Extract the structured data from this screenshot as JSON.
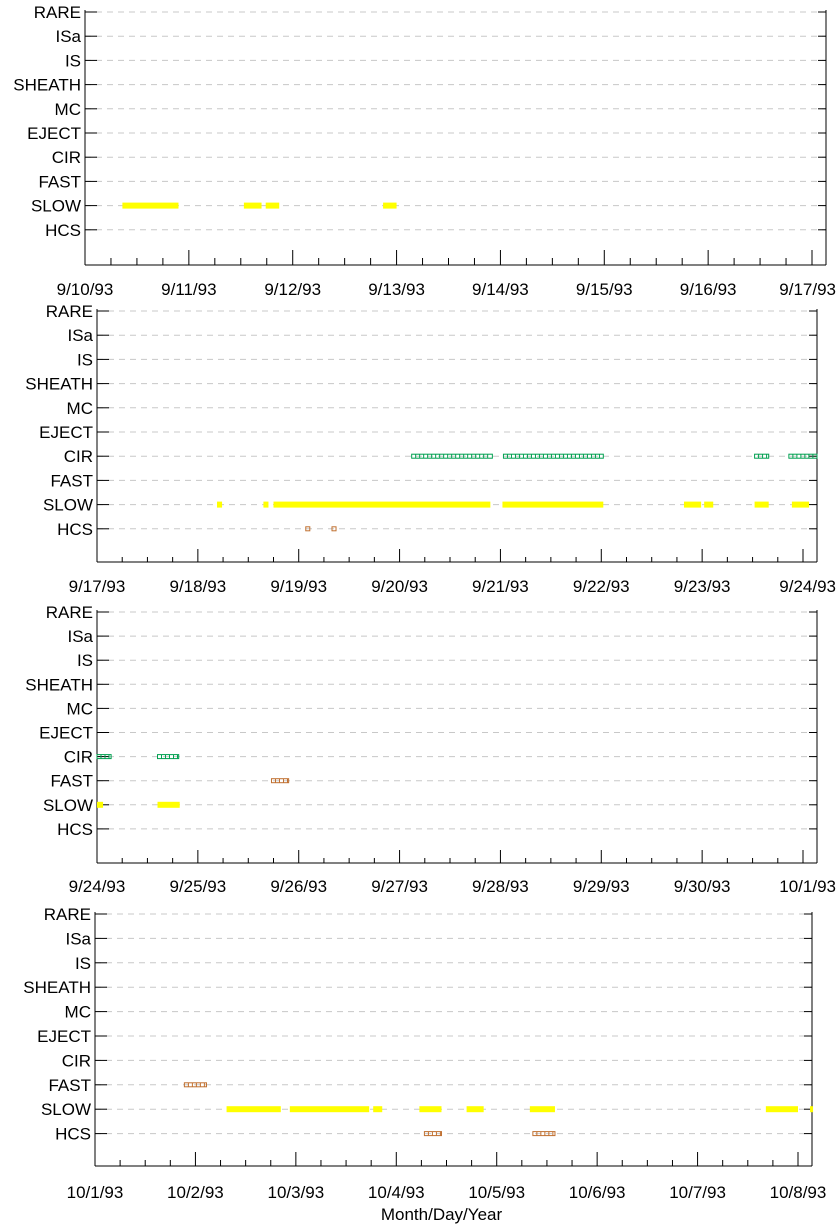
{
  "chart_data": [
    {
      "type": "scatter",
      "title": "",
      "xlabel": "",
      "ylabel": "",
      "categories": [
        "RARE",
        "ISa",
        "IS",
        "SHEATH",
        "MC",
        "EJECT",
        "CIR",
        "FAST",
        "SLOW",
        "HCS"
      ],
      "tick_labels": [
        "9/10/93",
        "9/11/93",
        "9/12/93",
        "9/13/93",
        "9/14/93",
        "9/15/93",
        "9/16/93",
        "9/17/93"
      ],
      "xlim": [
        0,
        7
      ],
      "grid": "horizontal-dashed",
      "series": [
        {
          "category": "SLOW",
          "color": "#ffff00",
          "style": "solid",
          "segments": [
            [
              0.36,
              0.9
            ],
            [
              1.53,
              1.7
            ],
            [
              1.74,
              1.87
            ],
            [
              2.87,
              3.0
            ]
          ]
        }
      ]
    },
    {
      "type": "scatter",
      "title": "",
      "xlabel": "",
      "ylabel": "",
      "categories": [
        "RARE",
        "ISa",
        "IS",
        "SHEATH",
        "MC",
        "EJECT",
        "CIR",
        "FAST",
        "SLOW",
        "HCS"
      ],
      "tick_labels": [
        "9/17/93",
        "9/18/93",
        "9/19/93",
        "9/20/93",
        "9/21/93",
        "9/22/93",
        "9/23/93",
        "9/24/93"
      ],
      "xlim": [
        0,
        7
      ],
      "grid": "horizontal-dashed",
      "series": [
        {
          "category": "CIR",
          "color": "#00a050",
          "style": "hollow",
          "segments": [
            [
              3.12,
              3.92
            ],
            [
              4.03,
              5.02
            ],
            [
              6.52,
              6.66
            ],
            [
              6.86,
              7.14
            ]
          ]
        },
        {
          "category": "SLOW",
          "color": "#ffff00",
          "style": "solid",
          "segments": [
            [
              1.19,
              1.24
            ],
            [
              1.65,
              1.7
            ],
            [
              1.75,
              3.9
            ],
            [
              4.02,
              5.02
            ],
            [
              5.82,
              5.99
            ],
            [
              6.02,
              6.11
            ],
            [
              6.52,
              6.66
            ],
            [
              6.89,
              7.06
            ]
          ]
        },
        {
          "category": "HCS",
          "color": "#c07030",
          "style": "hollow",
          "segments": [
            [
              2.07,
              2.11
            ],
            [
              2.33,
              2.37
            ]
          ]
        }
      ]
    },
    {
      "type": "scatter",
      "title": "",
      "xlabel": "",
      "ylabel": "",
      "categories": [
        "RARE",
        "ISa",
        "IS",
        "SHEATH",
        "MC",
        "EJECT",
        "CIR",
        "FAST",
        "SLOW",
        "HCS"
      ],
      "tick_labels": [
        "9/24/93",
        "9/25/93",
        "9/26/93",
        "9/27/93",
        "9/28/93",
        "9/29/93",
        "9/30/93",
        "10/1/93"
      ],
      "xlim": [
        0,
        7
      ],
      "grid": "horizontal-dashed",
      "series": [
        {
          "category": "CIR",
          "color": "#00a050",
          "style": "hollow",
          "segments": [
            [
              0.0,
              0.14
            ],
            [
              0.6,
              0.81
            ]
          ]
        },
        {
          "category": "FAST",
          "color": "#c07030",
          "style": "hollow",
          "segments": [
            [
              1.73,
              1.9
            ]
          ]
        },
        {
          "category": "SLOW",
          "color": "#ffff00",
          "style": "solid",
          "segments": [
            [
              0.0,
              0.06
            ],
            [
              0.6,
              0.82
            ]
          ]
        }
      ]
    },
    {
      "type": "scatter",
      "title": "",
      "xlabel": "Month/Day/Year",
      "ylabel": "",
      "categories": [
        "RARE",
        "ISa",
        "IS",
        "SHEATH",
        "MC",
        "EJECT",
        "CIR",
        "FAST",
        "SLOW",
        "HCS"
      ],
      "tick_labels": [
        "10/1/93",
        "10/2/93",
        "10/3/93",
        "10/4/93",
        "10/5/93",
        "10/6/93",
        "10/7/93",
        "10/8/93"
      ],
      "xlim": [
        0,
        7
      ],
      "grid": "horizontal-dashed",
      "series": [
        {
          "category": "FAST",
          "color": "#c07030",
          "style": "hollow",
          "segments": [
            [
              0.89,
              1.11
            ]
          ]
        },
        {
          "category": "SLOW",
          "color": "#ffff00",
          "style": "solid",
          "segments": [
            [
              1.31,
              1.85
            ],
            [
              1.94,
              2.73
            ],
            [
              2.77,
              2.86
            ],
            [
              3.23,
              3.45
            ],
            [
              3.7,
              3.87
            ],
            [
              4.33,
              4.58
            ],
            [
              6.68,
              7.0
            ],
            [
              7.12,
              7.18
            ]
          ]
        },
        {
          "category": "HCS",
          "color": "#c07030",
          "style": "hollow",
          "segments": [
            [
              3.28,
              3.45
            ],
            [
              4.36,
              4.58
            ]
          ]
        }
      ]
    }
  ]
}
